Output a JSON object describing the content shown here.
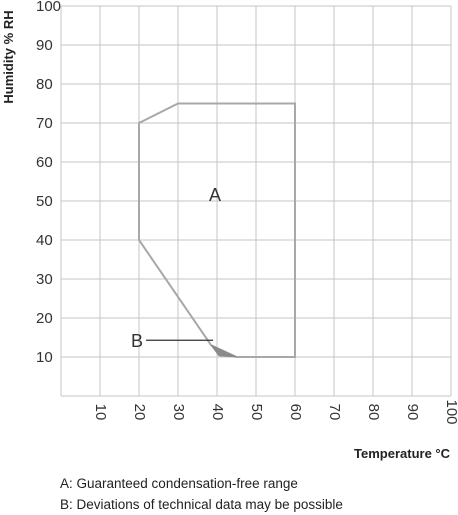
{
  "chart_data": {
    "type": "area",
    "xlabel": "Temperature °C",
    "ylabel": "Humidity % RH",
    "xlim": [
      0,
      100
    ],
    "ylim": [
      0,
      100
    ],
    "x_ticks": [
      10,
      20,
      30,
      40,
      50,
      60,
      70,
      80,
      90,
      100
    ],
    "y_ticks": [
      10,
      20,
      30,
      40,
      50,
      60,
      70,
      80,
      90,
      100
    ],
    "grid": true,
    "regions": [
      {
        "name": "A",
        "polygon": [
          [
            20,
            70
          ],
          [
            30,
            75
          ],
          [
            60,
            75
          ],
          [
            60,
            10
          ],
          [
            45,
            10
          ],
          [
            38.5,
            13
          ],
          [
            20,
            40
          ]
        ]
      },
      {
        "name": "B",
        "polygon": [
          [
            38.5,
            13
          ],
          [
            45,
            10
          ],
          [
            40.5,
            10.3
          ]
        ]
      }
    ],
    "annotations": [
      {
        "text": "A",
        "x": 39.5,
        "y": 50
      },
      {
        "text": "B",
        "x": 19.5,
        "y": 12.5
      }
    ]
  },
  "legend": {
    "line_a": "A: Guaranteed condensation-free range",
    "line_b": "B: Deviations of technical data may be possible"
  },
  "colors": {
    "grid": "#c6c6c6",
    "outline": "#a8a8a8",
    "region_b": "#8a8a8a"
  }
}
